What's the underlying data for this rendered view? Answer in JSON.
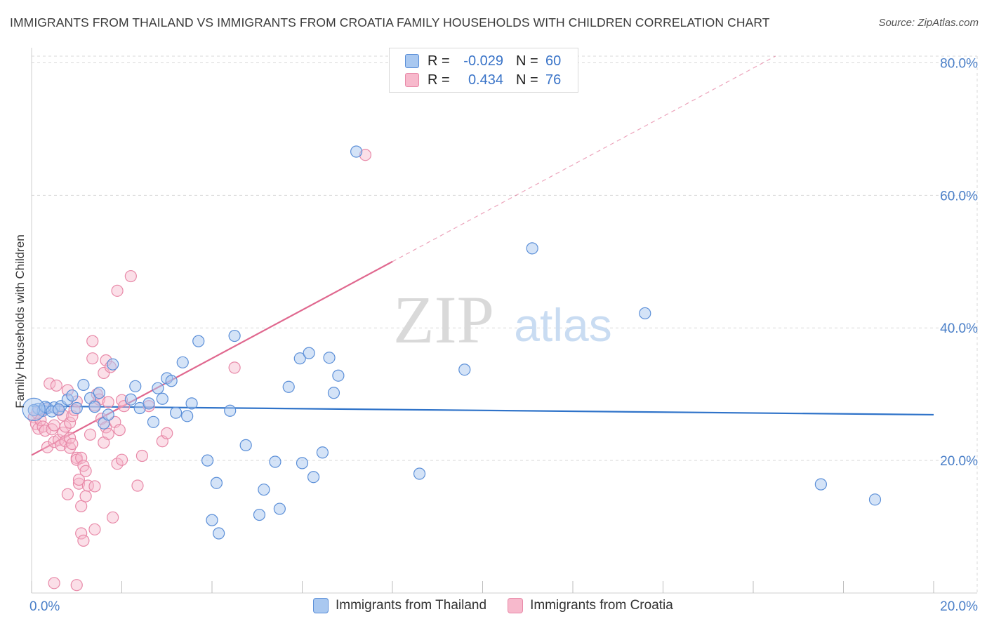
{
  "title": "IMMIGRANTS FROM THAILAND VS IMMIGRANTS FROM CROATIA FAMILY HOUSEHOLDS WITH CHILDREN CORRELATION CHART",
  "source": "Source: ZipAtlas.com",
  "watermark": {
    "zip": "ZIP",
    "atlas": "atlas"
  },
  "legend": {
    "thailand": {
      "r_label": "R =",
      "r_value": "-0.029",
      "n_label": "N =",
      "n_value": "60"
    },
    "croatia": {
      "r_label": "R =",
      "r_value": "0.434",
      "n_label": "N =",
      "n_value": "76"
    }
  },
  "series_names": {
    "thailand": "Immigrants from Thailand",
    "croatia": "Immigrants from Croatia"
  },
  "colors": {
    "thailand_fill": "#a9c8f0",
    "thailand_stroke": "#5b8fd8",
    "thailand_line": "#2f73c9",
    "croatia_fill": "#f7b9cc",
    "croatia_stroke": "#e889a8",
    "croatia_line": "#e0688f",
    "tick_text": "#4a7fc8",
    "grid": "#d9d9d9"
  },
  "chart_data": {
    "type": "scatter",
    "title": "IMMIGRANTS FROM THAILAND VS IMMIGRANTS FROM CROATIA FAMILY HOUSEHOLDS WITH CHILDREN CORRELATION CHART",
    "xlabel": "",
    "ylabel": "Family Households with Children",
    "xlim": [
      0,
      20
    ],
    "ylim": [
      0,
      81
    ],
    "x_ticks": [
      {
        "value": 0,
        "label": "0.0%"
      },
      {
        "value": 20,
        "label": "20.0%"
      }
    ],
    "y_ticks": [
      {
        "value": 20,
        "label": "20.0%"
      },
      {
        "value": 40,
        "label": "40.0%"
      },
      {
        "value": 60,
        "label": "60.0%"
      },
      {
        "value": 80,
        "label": "80.0%"
      }
    ],
    "series": [
      {
        "name": "Immigrants from Thailand",
        "r": -0.029,
        "n": 60,
        "trend": {
          "x0": 0,
          "y0": 28.2,
          "x1": 20,
          "y1": 26.9,
          "dashed_from_x": null
        },
        "points": [
          [
            0.15,
            27.8
          ],
          [
            0.25,
            27.5
          ],
          [
            0.35,
            27.9
          ],
          [
            0.5,
            28.0
          ],
          [
            0.65,
            28.2
          ],
          [
            0.8,
            29.2
          ],
          [
            0.9,
            29.8
          ],
          [
            1.0,
            27.9
          ],
          [
            1.15,
            31.4
          ],
          [
            1.3,
            29.4
          ],
          [
            1.4,
            28.1
          ],
          [
            1.5,
            30.2
          ],
          [
            1.6,
            25.6
          ],
          [
            1.7,
            26.9
          ],
          [
            1.8,
            34.5
          ],
          [
            2.2,
            29.2
          ],
          [
            2.3,
            31.2
          ],
          [
            2.4,
            27.9
          ],
          [
            2.6,
            28.6
          ],
          [
            2.7,
            25.8
          ],
          [
            2.8,
            30.9
          ],
          [
            2.9,
            29.3
          ],
          [
            3.0,
            32.4
          ],
          [
            3.1,
            32.0
          ],
          [
            3.2,
            27.2
          ],
          [
            3.35,
            34.8
          ],
          [
            3.45,
            26.7
          ],
          [
            3.55,
            28.6
          ],
          [
            3.7,
            38.0
          ],
          [
            3.9,
            20.0
          ],
          [
            4.0,
            11.0
          ],
          [
            4.1,
            16.6
          ],
          [
            4.15,
            9.0
          ],
          [
            4.4,
            27.5
          ],
          [
            4.5,
            38.8
          ],
          [
            4.75,
            22.3
          ],
          [
            5.05,
            11.8
          ],
          [
            5.15,
            15.6
          ],
          [
            5.4,
            19.8
          ],
          [
            5.5,
            12.7
          ],
          [
            5.7,
            31.1
          ],
          [
            5.95,
            35.4
          ],
          [
            6.0,
            19.6
          ],
          [
            6.15,
            36.2
          ],
          [
            6.25,
            17.5
          ],
          [
            6.45,
            21.2
          ],
          [
            6.6,
            35.5
          ],
          [
            6.7,
            30.2
          ],
          [
            6.8,
            32.8
          ],
          [
            7.2,
            66.6
          ],
          [
            8.6,
            18.0
          ],
          [
            9.6,
            33.7
          ],
          [
            11.1,
            52.0
          ],
          [
            13.6,
            42.2
          ],
          [
            17.5,
            16.4
          ],
          [
            18.7,
            14.1
          ],
          [
            0.05,
            27.6
          ],
          [
            0.3,
            28.1
          ],
          [
            0.45,
            27.4
          ],
          [
            0.6,
            27.7
          ]
        ]
      },
      {
        "name": "Immigrants from Croatia",
        "r": 0.434,
        "n": 76,
        "trend": {
          "x0": 0,
          "y0": 20.8,
          "x1": 8.0,
          "y1": 50.0,
          "dashed_to_x": 20,
          "dashed_to_y": 93.8
        },
        "points": [
          [
            0.05,
            26.5
          ],
          [
            0.1,
            25.5
          ],
          [
            0.12,
            27.2
          ],
          [
            0.15,
            24.8
          ],
          [
            0.2,
            26.1
          ],
          [
            0.25,
            25.1
          ],
          [
            0.3,
            27.8
          ],
          [
            0.3,
            24.5
          ],
          [
            0.35,
            22.0
          ],
          [
            0.4,
            31.6
          ],
          [
            0.45,
            24.7
          ],
          [
            0.5,
            22.8
          ],
          [
            0.5,
            25.3
          ],
          [
            0.55,
            31.3
          ],
          [
            0.6,
            23.1
          ],
          [
            0.6,
            27.6
          ],
          [
            0.65,
            22.3
          ],
          [
            0.7,
            24.2
          ],
          [
            0.7,
            26.8
          ],
          [
            0.75,
            22.9
          ],
          [
            0.75,
            25.1
          ],
          [
            0.8,
            30.6
          ],
          [
            0.8,
            14.9
          ],
          [
            0.85,
            25.7
          ],
          [
            0.85,
            21.9
          ],
          [
            0.85,
            23.4
          ],
          [
            0.9,
            26.7
          ],
          [
            0.95,
            27.6
          ],
          [
            1.0,
            28.9
          ],
          [
            1.0,
            20.4
          ],
          [
            1.0,
            20.1
          ],
          [
            1.05,
            16.5
          ],
          [
            1.05,
            17.1
          ],
          [
            1.1,
            20.4
          ],
          [
            1.1,
            9.0
          ],
          [
            1.1,
            13.1
          ],
          [
            1.15,
            7.9
          ],
          [
            1.15,
            19.2
          ],
          [
            1.2,
            14.6
          ],
          [
            1.2,
            18.4
          ],
          [
            1.25,
            16.2
          ],
          [
            1.3,
            23.9
          ],
          [
            1.35,
            35.4
          ],
          [
            1.35,
            38.0
          ],
          [
            1.4,
            16.1
          ],
          [
            1.4,
            28.3
          ],
          [
            1.4,
            9.6
          ],
          [
            1.45,
            30.0
          ],
          [
            1.5,
            29.2
          ],
          [
            1.55,
            26.3
          ],
          [
            1.6,
            33.2
          ],
          [
            1.6,
            22.7
          ],
          [
            1.65,
            35.1
          ],
          [
            1.65,
            25.0
          ],
          [
            1.7,
            24.0
          ],
          [
            1.7,
            28.8
          ],
          [
            1.75,
            34.1
          ],
          [
            1.8,
            11.4
          ],
          [
            1.85,
            25.8
          ],
          [
            1.9,
            19.5
          ],
          [
            1.9,
            45.6
          ],
          [
            1.95,
            24.6
          ],
          [
            2.0,
            20.1
          ],
          [
            2.0,
            29.1
          ],
          [
            2.05,
            28.2
          ],
          [
            2.2,
            47.8
          ],
          [
            2.35,
            16.2
          ],
          [
            2.45,
            20.7
          ],
          [
            2.6,
            28.2
          ],
          [
            2.9,
            22.9
          ],
          [
            3.0,
            24.1
          ],
          [
            4.5,
            34.0
          ],
          [
            7.4,
            66.1
          ],
          [
            1.0,
            1.2
          ],
          [
            0.5,
            1.5
          ],
          [
            0.9,
            22.5
          ]
        ]
      }
    ]
  }
}
